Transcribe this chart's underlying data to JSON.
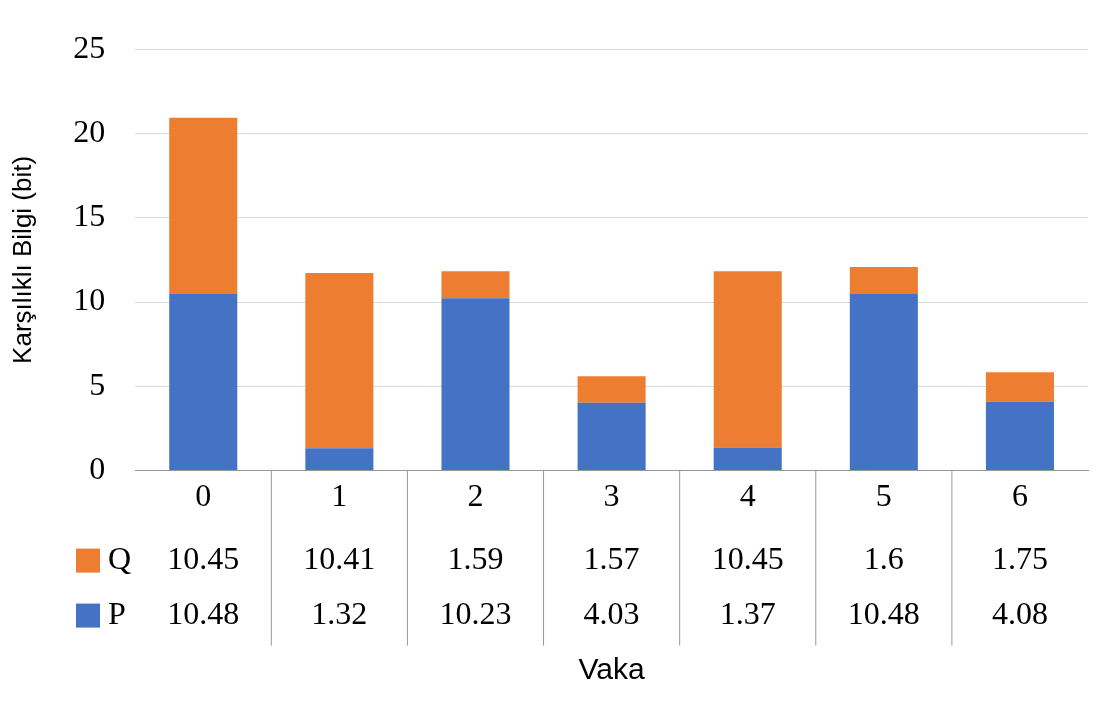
{
  "chart_data": {
    "type": "bar",
    "stacked": true,
    "xlabel": "Vaka",
    "ylabel": "Karşılıklı Bilgi (bit)",
    "categories": [
      "0",
      "1",
      "2",
      "3",
      "4",
      "5",
      "6"
    ],
    "series": [
      {
        "name": "P",
        "color": "#4472c4",
        "values": [
          10.48,
          1.32,
          10.23,
          4.03,
          1.37,
          10.48,
          4.08
        ]
      },
      {
        "name": "Q",
        "color": "#ed7d31",
        "values": [
          10.45,
          10.41,
          1.59,
          1.57,
          10.45,
          1.6,
          1.75
        ]
      }
    ],
    "ylim": [
      0,
      25
    ],
    "yticks": [
      0,
      5,
      10,
      15,
      20,
      25
    ],
    "grid": "y",
    "legend": "bottom",
    "data_labels": true
  }
}
